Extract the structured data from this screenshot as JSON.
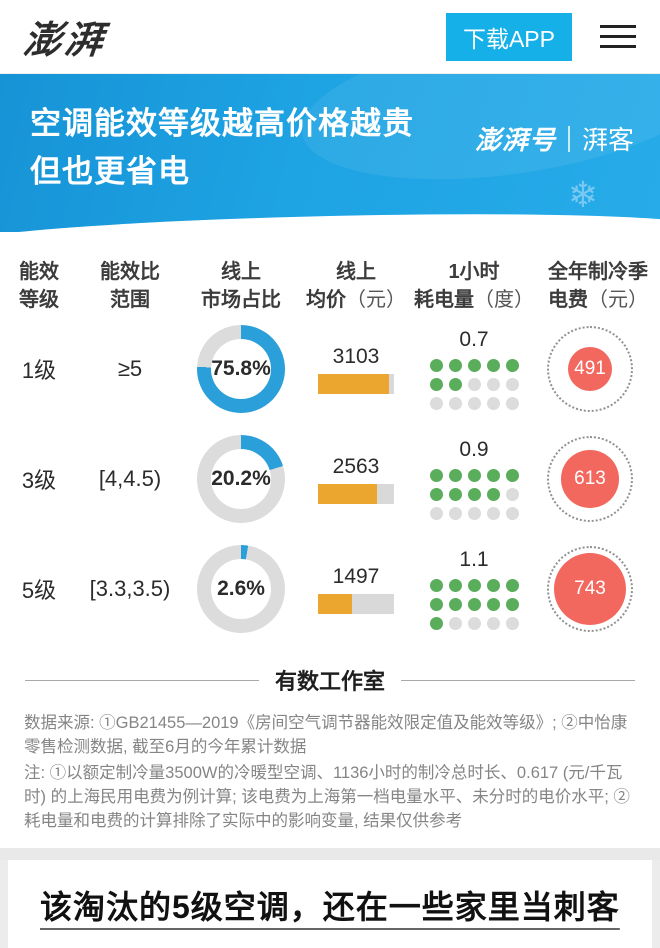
{
  "topbar": {
    "logo_text": "澎湃",
    "download_button": "下载APP"
  },
  "banner": {
    "title_line1": "空调能效等级越高价格越贵",
    "title_line2": "但也更省电",
    "brand_left": "澎湃号",
    "brand_right": "湃客",
    "snowflake_icon": "❄"
  },
  "table": {
    "headers": [
      {
        "l1": "能效",
        "l2": "等级",
        "unit": ""
      },
      {
        "l1": "能效比",
        "l2": "范围",
        "unit": ""
      },
      {
        "l1": "线上",
        "l2": "市场占比",
        "unit": ""
      },
      {
        "l1": "线上",
        "l2": "均价",
        "unit": "（元）"
      },
      {
        "l1": "1小时",
        "l2": "耗电量",
        "unit": "（度）"
      },
      {
        "l1": "全年制冷季",
        "l2": "电费",
        "unit": "（元）"
      }
    ],
    "rows": [
      {
        "level": "1级",
        "range": "≥5",
        "share": 75.8,
        "share_label": "75.8%",
        "price": 3103,
        "kwh": 0.7,
        "kwh_label": "0.7",
        "cost": 491
      },
      {
        "level": "3级",
        "range": "[4,4.5)",
        "share": 20.2,
        "share_label": "20.2%",
        "price": 2563,
        "kwh": 0.9,
        "kwh_label": "0.9",
        "cost": 613
      },
      {
        "level": "5级",
        "range": "[3.3,3.5)",
        "share": 2.6,
        "share_label": "2.6%",
        "price": 1497,
        "kwh": 1.1,
        "kwh_label": "1.1",
        "cost": 743
      }
    ]
  },
  "chart_data": {
    "type": "table",
    "title": "空调能效等级越高价格越贵 但也更省电",
    "columns": [
      "能效等级",
      "能效比范围",
      "线上市场占比",
      "线上均价（元）",
      "1小时耗电量（度）",
      "全年制冷季电费（元）"
    ],
    "rows": [
      [
        "1级",
        "≥5",
        "75.8%",
        3103,
        0.7,
        491
      ],
      [
        "3级",
        "[4,4.5)",
        "20.2%",
        2563,
        0.9,
        613
      ],
      [
        "5级",
        "[3.3,3.5)",
        "2.6%",
        1497,
        1.1,
        743
      ]
    ],
    "visual_encodings": {
      "市场占比": "donut",
      "均价": "bar",
      "耗电量": "dot-grid (1 dot = 0.1 度, 15 dots max)",
      "电费": "sized-circle"
    }
  },
  "footer": {
    "studio": "有数工作室",
    "source": "数据来源: ①GB21455—2019《房间空气调节器能效限定值及能效等级》; ②中怡康零售检测数据, 截至6月的今年累计数据",
    "note": "注: ①以额定制冷量3500W的冷暖型空调、1136小时的制冷总时长、0.617 (元/千瓦时) 的上海民用电费为例计算; 该电费为上海第一档电量水平、未分时的电价水平; ②耗电量和电费的计算排除了实际中的影响变量, 结果仅供参考"
  },
  "headline": {
    "text": "该淘汰的5级空调，还在一些家里当刺客"
  },
  "colors": {
    "banner_blue": "#1ea3e3",
    "button_blue": "#16b0e8",
    "donut_blue": "#2b9fd9",
    "track_gray": "#dcdcdc",
    "bar_orange": "#eaa62f",
    "dot_green": "#5aad5a",
    "cost_red": "#f2685f"
  }
}
